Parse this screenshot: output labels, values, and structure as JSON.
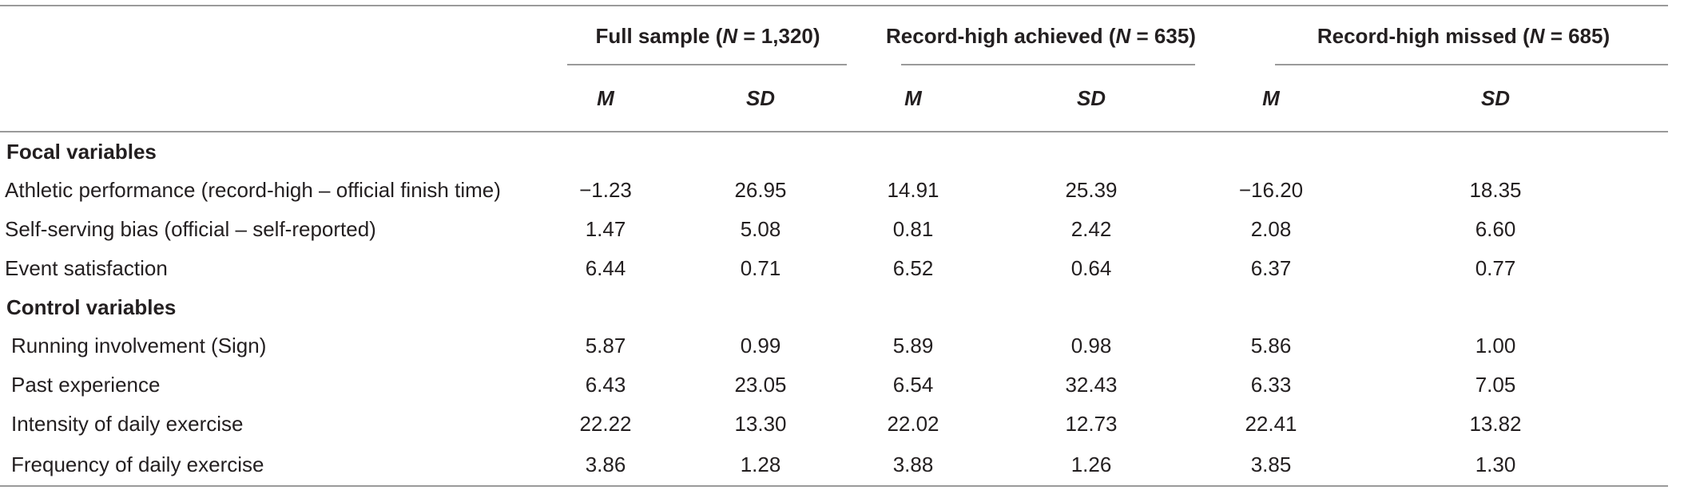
{
  "table": {
    "groups": [
      {
        "prefix": "Full sample (",
        "n_label": "N",
        "suffix": " = 1,320)"
      },
      {
        "prefix": "Record-high achieved (",
        "n_label": "N",
        "suffix": " = 635)"
      },
      {
        "prefix": "Record-high missed (",
        "n_label": "N",
        "suffix": " = 685)"
      }
    ],
    "stat_headers": [
      "M",
      "SD",
      "M",
      "SD",
      "M",
      "SD"
    ],
    "sections": [
      {
        "title": "Focal variables",
        "rows": [
          {
            "label": "Athletic performance (record-high – official finish time)",
            "values": [
              "−1.23",
              "26.95",
              "14.91",
              "25.39",
              "−16.20",
              "18.35"
            ]
          },
          {
            "label": "Self-serving bias (official – self-reported)",
            "values": [
              "1.47",
              "5.08",
              "0.81",
              "2.42",
              "2.08",
              "6.60"
            ]
          },
          {
            "label": "Event satisfaction",
            "values": [
              "6.44",
              "0.71",
              "6.52",
              "0.64",
              "6.37",
              "0.77"
            ]
          }
        ]
      },
      {
        "title": "Control variables",
        "rows": [
          {
            "label": "Running involvement (Sign)",
            "values": [
              "5.87",
              "0.99",
              "5.89",
              "0.98",
              "5.86",
              "1.00"
            ]
          },
          {
            "label": "Past experience",
            "values": [
              "6.43",
              "23.05",
              "6.54",
              "32.43",
              "6.33",
              "7.05"
            ]
          },
          {
            "label": "Intensity of daily exercise",
            "values": [
              "22.22",
              "13.30",
              "22.02",
              "12.73",
              "22.41",
              "13.82"
            ]
          },
          {
            "label": "Frequency of daily exercise",
            "values": [
              "3.86",
              "1.28",
              "3.88",
              "1.26",
              "3.85",
              "1.30"
            ]
          }
        ]
      }
    ]
  }
}
